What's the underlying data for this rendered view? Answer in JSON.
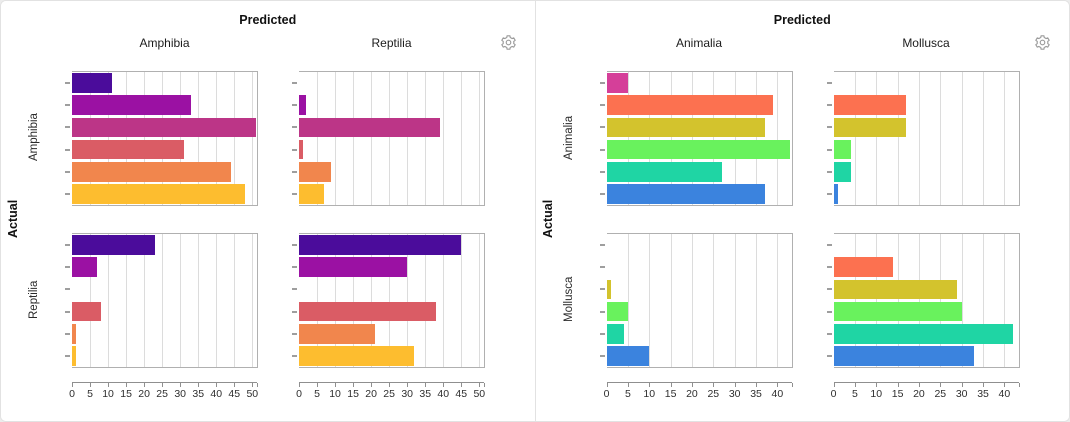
{
  "page": {
    "background": "#ececec",
    "card_background": "#ffffff",
    "card_border": "#e2e2e2"
  },
  "icons": {
    "settings": "gear-icon",
    "settings_color": "#9a9a9a"
  },
  "style": {
    "grid_color": "#dcdcdc",
    "plot_border_color": "#b0b0b0",
    "tick_color": "#9e9e9e",
    "axis_line_color": "#8f8f8f"
  },
  "chart_data": [
    {
      "type": "bar",
      "orientation": "horizontal",
      "layout": "2x2 facet grid (confusion matrix)",
      "title": "Predicted",
      "ylabel": "Actual",
      "columns": [
        "Amphibia",
        "Reptilia"
      ],
      "rows": [
        "Amphibia",
        "Reptilia"
      ],
      "series_per_facet": 6,
      "xlim": [
        0,
        51.3
      ],
      "xticks": [
        0,
        5,
        10,
        15,
        20,
        25,
        30,
        35,
        40,
        45,
        50
      ],
      "grid": true,
      "bar_colors": [
        "#4b0c9b",
        "#9b11a3",
        "#bc3587",
        "#da5c65",
        "#f1864d",
        "#fdbd2f"
      ],
      "cells": [
        {
          "actual": "Amphibia",
          "predicted": "Amphibia",
          "values": [
            11,
            33,
            51,
            31,
            44,
            48
          ]
        },
        {
          "actual": "Amphibia",
          "predicted": "Reptilia",
          "values": [
            0,
            2,
            39,
            1,
            9,
            7
          ]
        },
        {
          "actual": "Reptilia",
          "predicted": "Amphibia",
          "values": [
            23,
            7,
            0,
            8,
            1,
            1
          ]
        },
        {
          "actual": "Reptilia",
          "predicted": "Reptilia",
          "values": [
            45,
            30,
            0,
            38,
            21,
            32
          ]
        }
      ]
    },
    {
      "type": "bar",
      "orientation": "horizontal",
      "layout": "2x2 facet grid (confusion matrix)",
      "title": "Predicted",
      "ylabel": "Actual",
      "columns": [
        "Animalia",
        "Mollusca"
      ],
      "rows": [
        "Animalia",
        "Mollusca"
      ],
      "series_per_facet": 6,
      "xlim": [
        0,
        43.3
      ],
      "xticks": [
        0,
        5,
        10,
        15,
        20,
        25,
        30,
        35,
        40
      ],
      "grid": true,
      "bar_colors": [
        "#d53f99",
        "#fc7150",
        "#d3c32d",
        "#69f25d",
        "#1fd5a4",
        "#3b83de"
      ],
      "cells": [
        {
          "actual": "Animalia",
          "predicted": "Animalia",
          "values": [
            5,
            39,
            37,
            43,
            27,
            37
          ]
        },
        {
          "actual": "Animalia",
          "predicted": "Mollusca",
          "values": [
            0,
            17,
            17,
            4,
            4,
            1
          ]
        },
        {
          "actual": "Mollusca",
          "predicted": "Animalia",
          "values": [
            0,
            0,
            1,
            5,
            4,
            10
          ]
        },
        {
          "actual": "Mollusca",
          "predicted": "Mollusca",
          "values": [
            0,
            14,
            29,
            30,
            42,
            33
          ]
        }
      ]
    }
  ]
}
